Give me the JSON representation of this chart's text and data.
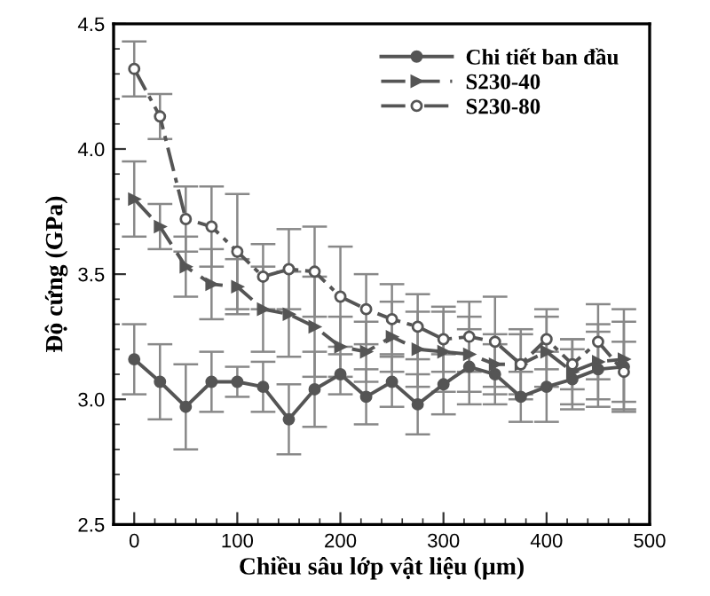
{
  "chart_data": {
    "type": "line",
    "xlabel": "Chiều sâu lớp vật liệu (µm)",
    "ylabel": "Độ cứng (GPa)",
    "x": [
      0,
      25,
      50,
      75,
      100,
      125,
      150,
      175,
      200,
      225,
      250,
      275,
      300,
      325,
      350,
      375,
      400,
      425,
      450,
      475
    ],
    "series": [
      {
        "name": "Chi tiết ban đầu",
        "color": "#555555",
        "marker": "circle",
        "line_style": "solid",
        "values": [
          3.16,
          3.07,
          2.97,
          3.07,
          3.07,
          3.05,
          2.92,
          3.04,
          3.1,
          3.01,
          3.07,
          2.98,
          3.06,
          3.13,
          3.1,
          3.01,
          3.05,
          3.08,
          3.12,
          3.13
        ],
        "errors": [
          0.14,
          0.15,
          0.17,
          0.12,
          0.06,
          0.1,
          0.14,
          0.15,
          0.08,
          0.11,
          0.1,
          0.12,
          0.12,
          0.15,
          0.12,
          0.1,
          0.14,
          0.12,
          0.15,
          0.18
        ]
      },
      {
        "name": "S230-40",
        "color": "#555555",
        "marker": "triangle",
        "line_style": "dashed",
        "values": [
          3.8,
          3.69,
          3.53,
          3.46,
          3.45,
          3.36,
          3.34,
          3.29,
          3.21,
          3.19,
          3.25,
          3.2,
          3.19,
          3.18,
          3.14,
          3.14,
          3.19,
          3.11,
          3.15,
          3.16
        ],
        "errors": [
          0.15,
          0.09,
          0.12,
          0.14,
          0.11,
          0.17,
          0.17,
          0.2,
          0.12,
          0.12,
          0.14,
          0.15,
          0.16,
          0.15,
          0.12,
          0.12,
          0.14,
          0.13,
          0.15,
          0.2
        ]
      },
      {
        "name": "S230-80",
        "color": "#555555",
        "marker": "circle_open",
        "line_style": "dashdot",
        "values": [
          4.32,
          4.13,
          3.72,
          3.69,
          3.59,
          3.49,
          3.52,
          3.51,
          3.41,
          3.36,
          3.32,
          3.29,
          3.24,
          3.25,
          3.23,
          3.14,
          3.24,
          3.14,
          3.23,
          3.11
        ],
        "errors": [
          0.11,
          0.09,
          0.13,
          0.16,
          0.23,
          0.13,
          0.16,
          0.18,
          0.2,
          0.14,
          0.14,
          0.13,
          0.13,
          0.14,
          0.18,
          0.14,
          0.12,
          0.1,
          0.15,
          0.12
        ]
      }
    ],
    "xlim": [
      -20,
      500
    ],
    "xticks": [
      0,
      100,
      200,
      300,
      400,
      500
    ],
    "ylim": [
      2.5,
      4.5
    ],
    "yticks": [
      2.5,
      {
        "value": 3,
        "label": "3.0"
      },
      3.5,
      {
        "value": 4,
        "label": "4.0"
      },
      4.5
    ],
    "legend": "top right",
    "grid": false
  }
}
